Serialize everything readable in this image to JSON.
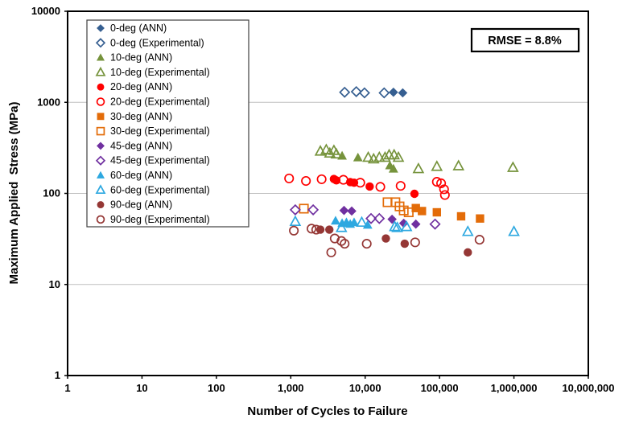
{
  "annotation": {
    "text": "RMSE = 8.8%"
  },
  "chart_data": {
    "type": "scatter",
    "title": "",
    "xlabel": "Number of Cycles to Failure",
    "ylabel": "Maximum Applied  Stress (MPa)",
    "x_scale": "log",
    "y_scale": "log",
    "xlim": [
      1,
      10000000
    ],
    "ylim": [
      1,
      10000
    ],
    "x_ticks": [
      "1",
      "10",
      "100",
      "1,000",
      "10,000",
      "100,000",
      "1,000,000",
      "10,000,000"
    ],
    "y_ticks": [
      "1",
      "10",
      "100",
      "1000",
      "10000"
    ],
    "grid": "horizontal-only",
    "legend_position": "top-left-inside",
    "series": [
      {
        "label": "0-deg (ANN)",
        "marker": "diamond",
        "fill": "filled",
        "color": "#365F91",
        "points": [
          [
            24000,
            1290
          ],
          [
            32000,
            1270
          ]
        ]
      },
      {
        "label": "0-deg (Experimental)",
        "marker": "diamond",
        "fill": "open",
        "color": "#365F91",
        "points": [
          [
            5300,
            1290
          ],
          [
            7600,
            1310
          ],
          [
            9800,
            1270
          ],
          [
            18000,
            1270
          ]
        ]
      },
      {
        "label": "10-deg (ANN)",
        "marker": "triangle",
        "fill": "filled",
        "color": "#76933C",
        "points": [
          [
            4900,
            258
          ],
          [
            8000,
            247
          ],
          [
            21500,
            202
          ],
          [
            24000,
            186
          ]
        ]
      },
      {
        "label": "10-deg (Experimental)",
        "marker": "triangle",
        "fill": "open",
        "color": "#76933C",
        "points": [
          [
            2500,
            290
          ],
          [
            3000,
            301
          ],
          [
            3350,
            276
          ],
          [
            3800,
            295
          ],
          [
            4100,
            270
          ],
          [
            11000,
            248
          ],
          [
            13000,
            238
          ],
          [
            15500,
            248
          ],
          [
            18500,
            248
          ],
          [
            21000,
            264
          ],
          [
            24500,
            264
          ],
          [
            28000,
            248
          ],
          [
            52000,
            186
          ],
          [
            92000,
            197
          ],
          [
            180000,
            200
          ],
          [
            970000,
            192
          ]
        ]
      },
      {
        "label": "20-deg (ANN)",
        "marker": "circle",
        "fill": "filled",
        "color": "#FF0000",
        "points": [
          [
            3800,
            144
          ],
          [
            4100,
            139
          ],
          [
            6300,
            133
          ],
          [
            7100,
            131
          ],
          [
            11500,
            119
          ],
          [
            46000,
            99
          ]
        ]
      },
      {
        "label": "20-deg (Experimental)",
        "marker": "circle",
        "fill": "open",
        "color": "#FF0000",
        "points": [
          [
            950,
            146
          ],
          [
            1600,
            137
          ],
          [
            2600,
            143
          ],
          [
            5100,
            141
          ],
          [
            8600,
            131
          ],
          [
            16000,
            118
          ],
          [
            30000,
            121
          ],
          [
            92000,
            134
          ],
          [
            105000,
            129
          ],
          [
            115000,
            111
          ],
          [
            118000,
            96
          ]
        ]
      },
      {
        "label": "30-deg (ANN)",
        "marker": "square",
        "fill": "filled",
        "color": "#E36C09",
        "points": [
          [
            48000,
            69
          ],
          [
            58000,
            64
          ],
          [
            92000,
            62
          ],
          [
            195000,
            56
          ],
          [
            350000,
            53
          ]
        ]
      },
      {
        "label": "30-deg (Experimental)",
        "marker": "square",
        "fill": "open",
        "color": "#E36C09",
        "points": [
          [
            1500,
            68
          ],
          [
            20000,
            80
          ],
          [
            25500,
            80
          ],
          [
            29000,
            72
          ],
          [
            33000,
            65
          ],
          [
            38500,
            62
          ]
        ]
      },
      {
        "label": "45-deg (ANN)",
        "marker": "diamond",
        "fill": "filled",
        "color": "#7030A0",
        "points": [
          [
            5200,
            65
          ],
          [
            6600,
            64
          ],
          [
            23000,
            52
          ],
          [
            33000,
            47
          ],
          [
            48000,
            46
          ]
        ]
      },
      {
        "label": "45-deg (Experimental)",
        "marker": "diamond",
        "fill": "open",
        "color": "#7030A0",
        "points": [
          [
            1150,
            66
          ],
          [
            2000,
            66
          ],
          [
            12000,
            53
          ],
          [
            15500,
            53
          ],
          [
            87000,
            46
          ]
        ]
      },
      {
        "label": "60-deg (ANN)",
        "marker": "triangle",
        "fill": "filled",
        "color": "#2DA8E0",
        "points": [
          [
            4000,
            50
          ],
          [
            4900,
            47
          ],
          [
            5600,
            48
          ],
          [
            6300,
            46
          ],
          [
            7100,
            48
          ],
          [
            10800,
            45
          ]
        ]
      },
      {
        "label": "60-deg (Experimental)",
        "marker": "triangle",
        "fill": "open",
        "color": "#2DA8E0",
        "points": [
          [
            1150,
            49
          ],
          [
            4800,
            42
          ],
          [
            9000,
            48
          ],
          [
            25000,
            43
          ],
          [
            27000,
            42
          ],
          [
            36000,
            43
          ],
          [
            240000,
            38
          ],
          [
            1000000,
            38
          ]
        ]
      },
      {
        "label": "90-deg (ANN)",
        "marker": "circle",
        "fill": "filled",
        "color": "#953735",
        "points": [
          [
            2500,
            40
          ],
          [
            3300,
            40
          ],
          [
            19000,
            32
          ],
          [
            34000,
            28
          ],
          [
            240000,
            22.5
          ]
        ]
      },
      {
        "label": "90-deg (Experimental)",
        "marker": "circle",
        "fill": "open",
        "color": "#953735",
        "points": [
          [
            1100,
            39
          ],
          [
            1900,
            41
          ],
          [
            2200,
            40
          ],
          [
            3500,
            22.5
          ],
          [
            3900,
            32
          ],
          [
            4800,
            30
          ],
          [
            5300,
            28
          ],
          [
            10500,
            28
          ],
          [
            47000,
            29
          ],
          [
            345000,
            31
          ]
        ]
      }
    ]
  },
  "style": {
    "grid_color": "#BFBFBF",
    "frame_color": "#000000",
    "legend_border_color": "#404040",
    "background": "#FFFFFF"
  }
}
